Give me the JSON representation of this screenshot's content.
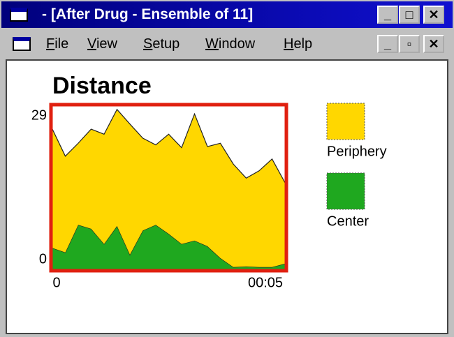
{
  "window": {
    "title": "- [After Drug - Ensemble of 11]"
  },
  "menu": [
    "File",
    "View",
    "Setup",
    "Window",
    "Help"
  ],
  "chart_data": {
    "type": "stacked-area",
    "title": "Distance",
    "categories": [
      "0",
      null,
      null,
      null,
      null,
      null,
      null,
      null,
      null,
      null,
      null,
      null,
      null,
      null,
      null,
      null,
      null,
      null,
      "00:05"
    ],
    "series": [
      {
        "name": "Periphery",
        "color": "#ffd700",
        "values": [
          21.1,
          17.1,
          14.5,
          17.7,
          19.5,
          20.7,
          23.2,
          16.4,
          14.2,
          17.7,
          17.1,
          22.5,
          17.7,
          20.4,
          18.3,
          15.7,
          17.1,
          19.2,
          14.4
        ]
      },
      {
        "name": "Center",
        "color": "#1fa81f",
        "values": [
          3.8,
          3.0,
          7.9,
          7.2,
          4.5,
          7.7,
          2.6,
          6.9,
          7.9,
          6.3,
          4.5,
          5.1,
          4.1,
          2.0,
          0.4,
          0.5,
          0.4,
          0.4,
          1.0
        ]
      }
    ],
    "ylim": [
      0,
      29
    ],
    "yticks": [
      0,
      29
    ],
    "frame_color": "#e02010"
  }
}
